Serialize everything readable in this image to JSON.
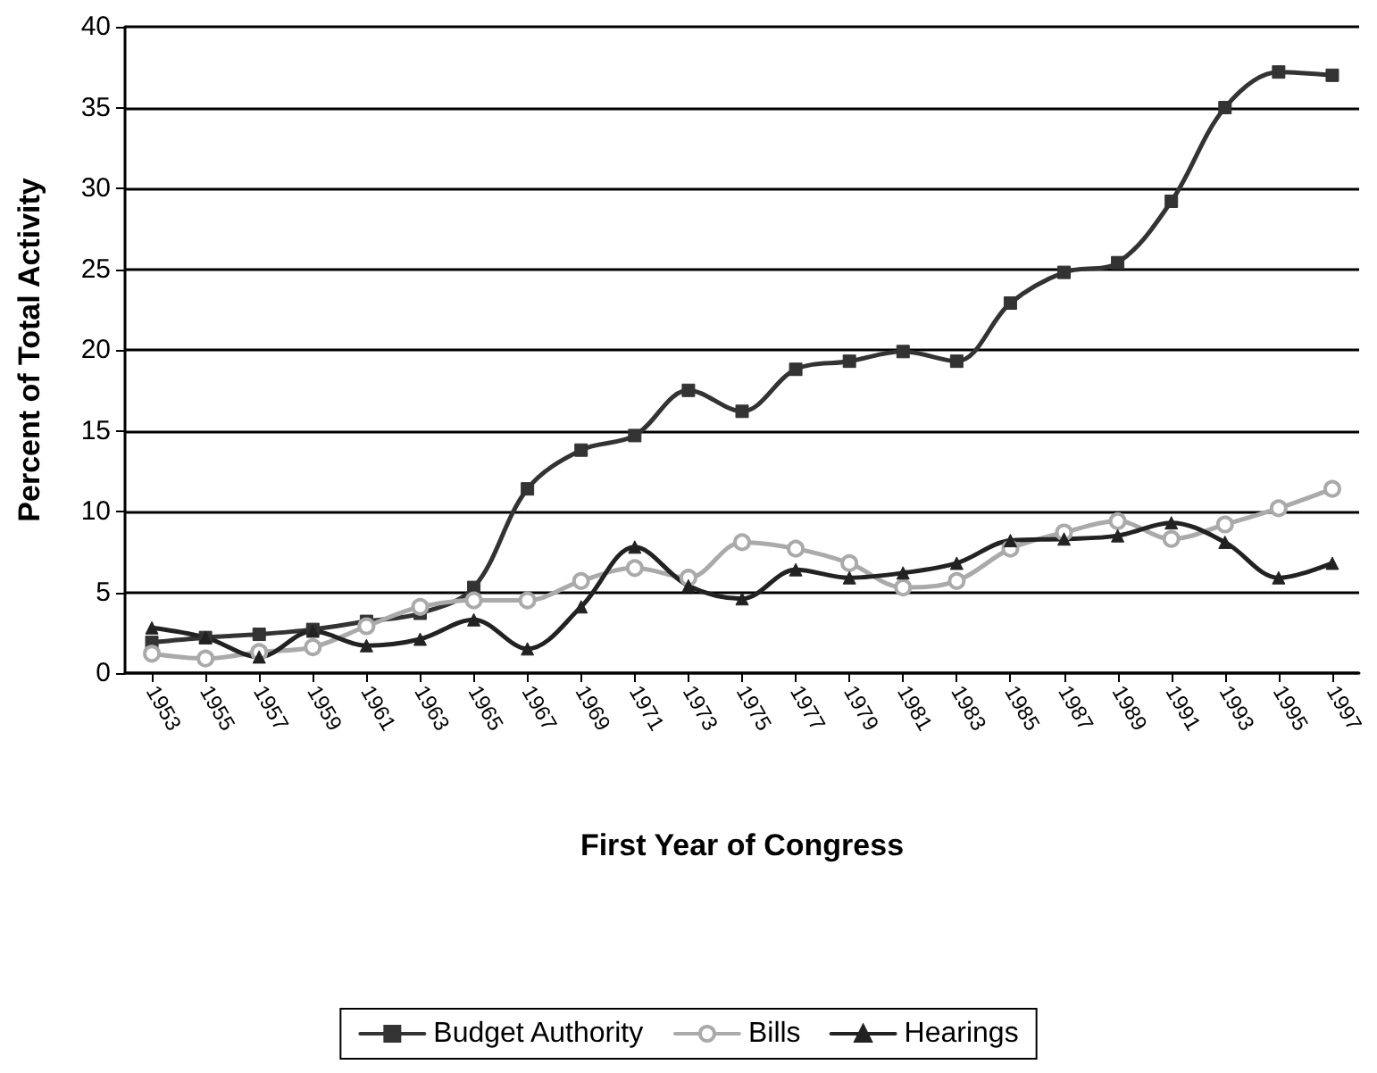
{
  "chart_data": {
    "type": "line",
    "xlabel": "First Year of Congress",
    "ylabel": "Percent of Total Activity",
    "categories": [
      "1953",
      "1955",
      "1957",
      "1959",
      "1961",
      "1963",
      "1965",
      "1967",
      "1969",
      "1971",
      "1973",
      "1975",
      "1977",
      "1979",
      "1981",
      "1983",
      "1985",
      "1987",
      "1989",
      "1991",
      "1993",
      "1995",
      "1997"
    ],
    "series": [
      {
        "name": "Budget Authority",
        "color": "#333333",
        "marker": "square",
        "values": [
          1.9,
          2.2,
          2.4,
          2.7,
          3.2,
          3.7,
          5.3,
          11.4,
          13.8,
          14.7,
          17.5,
          16.2,
          18.8,
          19.3,
          19.9,
          19.3,
          22.9,
          24.8,
          25.4,
          29.2,
          35.0,
          37.2,
          37.0
        ]
      },
      {
        "name": "Bills",
        "color": "#aaaaaa",
        "marker": "circle",
        "values": [
          1.2,
          0.9,
          1.3,
          1.6,
          2.9,
          4.1,
          4.5,
          4.5,
          5.7,
          6.5,
          5.9,
          8.1,
          7.7,
          6.8,
          5.3,
          5.7,
          7.7,
          8.7,
          9.4,
          8.3,
          9.2,
          10.2,
          11.4
        ]
      },
      {
        "name": "Hearings",
        "color": "#222222",
        "marker": "triangle",
        "values": [
          2.8,
          2.2,
          1.0,
          2.6,
          1.7,
          2.1,
          3.3,
          1.5,
          4.1,
          7.8,
          5.4,
          4.6,
          6.4,
          5.9,
          6.2,
          6.8,
          8.2,
          8.3,
          8.5,
          9.3,
          8.1,
          5.9,
          6.8
        ]
      }
    ],
    "ylim": [
      0,
      40
    ],
    "yticks": [
      0,
      5,
      10,
      15,
      20,
      25,
      30,
      35,
      40
    ],
    "grid": "y",
    "legend": "bottom",
    "line_style": "solid"
  }
}
